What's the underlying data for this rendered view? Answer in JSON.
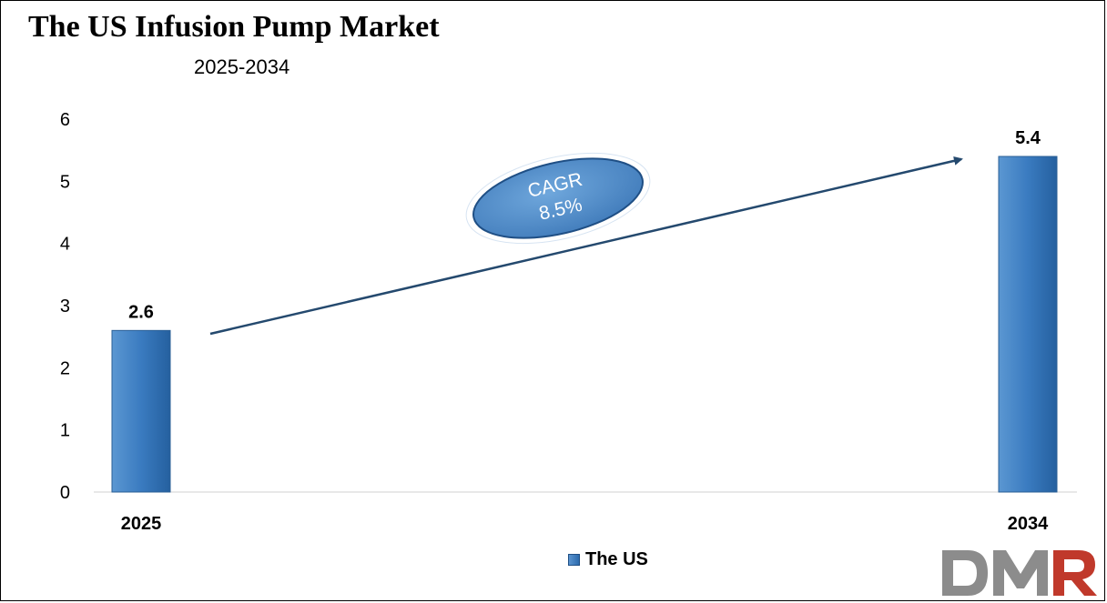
{
  "title": "The US Infusion Pump Market",
  "subtitle": "2025-2034",
  "chart_data": {
    "type": "bar",
    "categories": [
      "2025",
      "2034"
    ],
    "series": [
      {
        "name": "The US",
        "values": [
          2.6,
          5.4
        ]
      }
    ],
    "data_labels": [
      "2.6",
      "5.4"
    ],
    "yticks": [
      "0",
      "1",
      "2",
      "3",
      "4",
      "5",
      "6"
    ],
    "ylim": [
      0,
      6
    ],
    "grid": false,
    "legend_position": "bottom-center",
    "annotation": {
      "label": "CAGR",
      "value": "8.5%"
    }
  },
  "colors": {
    "bar": "#3a7bc0",
    "bar_dark": "#25609f",
    "arrow": "#24496e",
    "ellipse": "#4e8ccc",
    "logo_dm": "#8c8c8c",
    "logo_r": "#c0392b"
  },
  "logo": {
    "text": "DMR"
  }
}
